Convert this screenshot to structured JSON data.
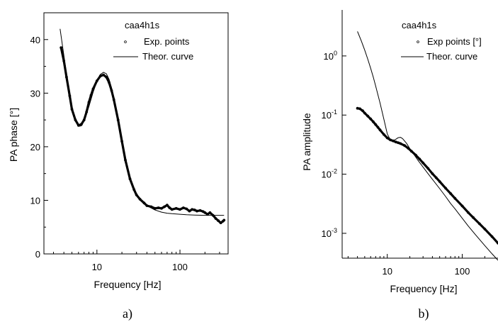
{
  "panels": {
    "a": {
      "caption": "a)"
    },
    "b": {
      "caption": "b)"
    }
  },
  "chart_data": [
    {
      "id": "a",
      "type": "line",
      "title": "",
      "xlabel": "Frequency [Hz]",
      "ylabel": "PA phase [°]",
      "xscale": "log",
      "xlim": [
        2.3,
        380
      ],
      "ylim": [
        0,
        45
      ],
      "x_ticks": [
        10,
        100
      ],
      "x_tick_labels": [
        "10",
        "100"
      ],
      "y_ticks": [
        0,
        10,
        20,
        30,
        40
      ],
      "y_tick_labels": [
        "0",
        "10",
        "20",
        "30",
        "40"
      ],
      "grid": false,
      "legend": {
        "title": "caa4h1s",
        "position": "top-right",
        "entries": [
          "Exp. points",
          "Theor. curve"
        ]
      },
      "series": [
        {
          "name": "Exp. points",
          "style": "points",
          "x": [
            3.7,
            4.0,
            4.3,
            4.7,
            5.0,
            5.5,
            6.0,
            6.5,
            7.0,
            7.5,
            8.0,
            8.5,
            9.0,
            10.0,
            11.0,
            12.0,
            13.0,
            14.0,
            15.0,
            16.0,
            18.0,
            20.0,
            22.0,
            25.0,
            28.0,
            30.0,
            33.0,
            37.0,
            40.0,
            45.0,
            50.0,
            55.0,
            60.0,
            65.0,
            70.0,
            75.0,
            80.0,
            90.0,
            100.0,
            110.0,
            120.0,
            130.0,
            140.0,
            150.0,
            160.0,
            175.0,
            190.0,
            200.0,
            215.0,
            230.0,
            250.0,
            270.0,
            290.0,
            310.0,
            330.0,
            340.0
          ],
          "y": [
            38.5,
            36.0,
            33.0,
            29.5,
            27.0,
            25.0,
            24.0,
            24.2,
            25.0,
            26.5,
            28.3,
            29.6,
            30.8,
            32.3,
            33.2,
            33.4,
            33.0,
            32.0,
            30.5,
            28.8,
            25.0,
            21.0,
            17.5,
            14.0,
            12.0,
            11.0,
            10.2,
            9.5,
            9.0,
            8.8,
            8.5,
            8.6,
            8.5,
            8.8,
            9.1,
            8.6,
            8.3,
            8.5,
            8.3,
            8.6,
            8.4,
            8.0,
            8.3,
            8.2,
            8.0,
            8.1,
            7.9,
            7.7,
            7.4,
            7.7,
            7.2,
            6.6,
            6.2,
            5.8,
            6.1,
            6.3
          ]
        },
        {
          "name": "Theor. curve",
          "style": "line",
          "x": [
            3.6,
            4.0,
            4.5,
            5.0,
            5.5,
            6.0,
            6.5,
            7.0,
            8.0,
            9.0,
            10.0,
            11.0,
            12.0,
            13.0,
            14.0,
            15.0,
            16.0,
            18.0,
            20.0,
            22.0,
            25.0,
            28.0,
            32.0,
            36.0,
            40.0,
            50.0,
            60.0,
            70.0,
            80.0,
            100.0,
            120.0,
            150.0,
            200.0,
            250.0,
            300.0,
            340.0
          ],
          "y": [
            42.0,
            37.0,
            31.5,
            27.5,
            25.0,
            23.8,
            23.9,
            24.8,
            27.5,
            30.2,
            32.2,
            33.5,
            33.9,
            33.6,
            32.6,
            31.0,
            29.2,
            25.3,
            21.4,
            18.0,
            14.3,
            12.0,
            10.4,
            9.6,
            9.0,
            8.2,
            7.8,
            7.6,
            7.5,
            7.4,
            7.3,
            7.25,
            7.2,
            7.2,
            7.2,
            7.2
          ]
        }
      ]
    },
    {
      "id": "b",
      "type": "line",
      "title": "",
      "xlabel": "Frequency [Hz]",
      "ylabel": "PA amplitude",
      "xscale": "log",
      "yscale": "log",
      "xlim": [
        2.5,
        300
      ],
      "ylim": [
        0.00038,
        6.0
      ],
      "x_ticks": [
        10,
        100
      ],
      "x_tick_labels": [
        "10",
        "100"
      ],
      "y_ticks": [
        1,
        0.1,
        0.01,
        0.001
      ],
      "y_tick_labels": [
        {
          "base": "10",
          "exp": "0"
        },
        {
          "base": "10",
          "exp": "-1"
        },
        {
          "base": "10",
          "exp": "-2"
        },
        {
          "base": "10",
          "exp": "-3"
        }
      ],
      "grid": false,
      "legend": {
        "title": "caa4h1s",
        "position": "top-right",
        "entries": [
          "Exp points [°]",
          "Theor. curve"
        ]
      },
      "series": [
        {
          "name": "Exp points [°]",
          "style": "points",
          "x": [
            4.0,
            4.3,
            4.7,
            5.0,
            5.5,
            6.0,
            6.5,
            7.0,
            7.5,
            8.0,
            9.0,
            10.0,
            11.0,
            12.0,
            13.0,
            14.0,
            15.0,
            17.0,
            19.0,
            21.0,
            24.0,
            27.0,
            30.0,
            35.0,
            40.0,
            45.0,
            50.0,
            60.0,
            70.0,
            80.0,
            100.0,
            120.0,
            140.0,
            170.0,
            200.0,
            250.0,
            300.0
          ],
          "y": [
            0.13,
            0.128,
            0.118,
            0.108,
            0.096,
            0.086,
            0.077,
            0.069,
            0.062,
            0.056,
            0.047,
            0.041,
            0.038,
            0.0365,
            0.035,
            0.034,
            0.033,
            0.0305,
            0.0275,
            0.0245,
            0.021,
            0.018,
            0.0155,
            0.0125,
            0.0102,
            0.0087,
            0.0075,
            0.0058,
            0.0047,
            0.0039,
            0.0029,
            0.00225,
            0.00185,
            0.00145,
            0.00118,
            0.00088,
            0.00068
          ]
        },
        {
          "name": "Theor. curve",
          "style": "line",
          "x": [
            4.0,
            4.5,
            5.0,
            5.5,
            6.0,
            6.5,
            7.0,
            8.0,
            9.0,
            10.0,
            11.0,
            12.0,
            13.0,
            14.0,
            15.0,
            16.0,
            18.0,
            20.0,
            23.0,
            26.0,
            30.0,
            35.0,
            40.0,
            50.0,
            60.0,
            70.0,
            80.0,
            100.0,
            120.0,
            150.0,
            200.0,
            250.0,
            300.0
          ],
          "y": [
            2.6,
            1.8,
            1.25,
            0.88,
            0.62,
            0.44,
            0.31,
            0.16,
            0.085,
            0.048,
            0.038,
            0.037,
            0.039,
            0.0415,
            0.042,
            0.04,
            0.0335,
            0.027,
            0.021,
            0.0168,
            0.0132,
            0.0102,
            0.0082,
            0.0057,
            0.0042,
            0.0032,
            0.0026,
            0.0018,
            0.00133,
            0.00095,
            0.00062,
            0.00045,
            0.00035
          ]
        }
      ]
    }
  ]
}
